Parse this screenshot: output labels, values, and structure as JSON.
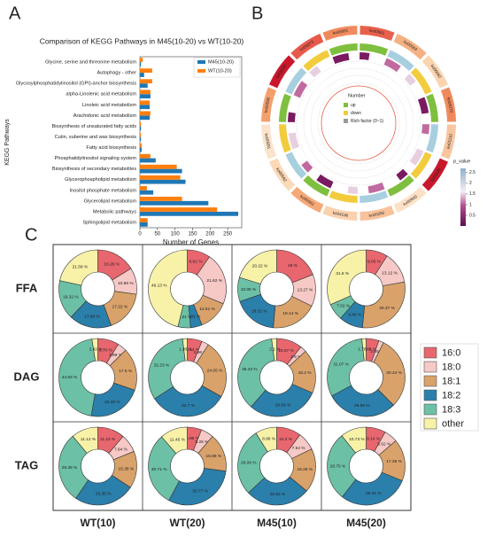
{
  "chart_data": [
    {
      "type": "hbar",
      "panel_label": "A",
      "title": "Comparison of KEGG Pathways in M45(10-20) vs WT(10-20)",
      "x_label": "Number of Genes",
      "y_label": "KEGG Pathways",
      "categories": [
        "Glycine, serine and threonine metabolism",
        "Autophagy - other",
        "Glycosylphosphatidylinositol (GPI)-anchor biosynthesis",
        "alpha-Linolenic acid metabolism",
        "Linoleic acid metabolism",
        "Arachidonic acid metabolism",
        "Biosynthesis of unsaturated fatty acids",
        "Cutin, suberine and wax biosynthesis",
        "Fatty acid biosynthesis",
        "Phosphatidylinositol signaling system",
        "Biosynthesis of secondary metabolites",
        "Glycerophospholipid metabolism",
        "Inositol phosphate metabolism",
        "Glycerolipid metabolism",
        "Metabolic pathways",
        "Sphingolipid metabolism"
      ],
      "series": [
        {
          "name": "M45(10-20)",
          "color": "#1f77b4",
          "values": [
            3,
            12,
            22,
            30,
            28,
            28,
            3,
            3,
            5,
            45,
            120,
            130,
            38,
            195,
            280,
            22
          ]
        },
        {
          "name": "WT(10-20)",
          "color": "#ff7f0e",
          "values": [
            8,
            35,
            35,
            30,
            28,
            30,
            3,
            3,
            5,
            30,
            105,
            115,
            20,
            120,
            220,
            22
          ]
        }
      ],
      "xlim": [
        0,
        290
      ],
      "xticks": [
        0,
        50,
        100,
        150,
        200,
        250
      ],
      "legend": "upper-right"
    },
    {
      "type": "circos",
      "panel_label": "B",
      "sectors": [
        "ko00561",
        "ko00564",
        "ko00562",
        "ko04070",
        "ko01110",
        "ko01100",
        "ko00600",
        "ko00260",
        "ko04136",
        "ko00563",
        "ko00592",
        "ko00591",
        "ko00590",
        "ko01040",
        "ko00073",
        "ko00061"
      ],
      "sector_colors": [
        "#e8604c",
        "#f5b183",
        "#fbd5b0",
        "#f08a5d",
        "#f7c59f",
        "#c9182b",
        "#fde0c5",
        "#f9c29b",
        "#fbd1ae",
        "#f6a878",
        "#fcd9b8",
        "#fbe3cb",
        "#f4a06e",
        "#c9182b",
        "#e85a4a",
        "#f08a5d"
      ],
      "legend_title": "Number",
      "legend_items": [
        "up",
        "down",
        "Rich factor (0~1)"
      ],
      "legend_colors": [
        "#7fbf3f",
        "#f2cc3c",
        "#999999"
      ],
      "colorbar_label": "p_value",
      "colorbar_ticks": [
        0.5,
        1,
        1.5,
        2,
        2.5
      ],
      "colorbar_lim": [
        0,
        2.7
      ]
    },
    {
      "type": "donut-grid",
      "panel_label": "C",
      "categories": [
        "16:0",
        "18:0",
        "18:1",
        "18:2",
        "18:3",
        "other"
      ],
      "colors": [
        "#e8666e",
        "#f6c9c6",
        "#d9a26a",
        "#2b7fab",
        "#6cc0a6",
        "#f8f2a8"
      ],
      "rows": [
        "FFA",
        "DAG",
        "TAG"
      ],
      "columns": [
        "WT(10)",
        "WT(20)",
        "M45(10)",
        "M45(20)"
      ],
      "grid": [
        [
          {
            "values": [
              16.26,
              10.96,
              17.22,
              17.66,
              16.32,
              21.58
            ],
            "value_labels": [
              "16.26 %",
              "10.96 %",
              "17.22 %",
              "17.66 %",
              "16.32 %",
              "21.58 %"
            ]
          },
          {
            "values": [
              9.62,
              21.62,
              12.61,
              4.81,
              5.21,
              46.13
            ],
            "value_labels": [
              "9.62 %",
              "21.62 %",
              "12.61 %",
              "4.81 %",
              "5.21 %",
              "46.13 %"
            ]
          },
          {
            "values": [
              19,
              13.27,
              19.14,
              18.32,
              10.05,
              20.22
            ],
            "value_labels": [
              "19 %",
              "13.27 %",
              "19.14 %",
              "18.32 %",
              "10.05 %",
              "20.22 %"
            ]
          },
          {
            "values": [
              9.03,
              13.12,
              29.37,
              9.86,
              7.02,
              31.6
            ],
            "value_labels": [
              "9.03 %",
              "13.12 %",
              "29.37 %",
              "9.86 %",
              "7.02 %",
              "31.6 %"
            ]
          }
        ],
        [
          {
            "values": [
              8.76,
              3.89,
              17.6,
              22.46,
              44.83,
              2.42
            ],
            "value_labels": [
              "8.76 %",
              "3.89 %",
              "17.6 %",
              "22.46 %",
              "44.83 %",
              "2.42 %"
            ]
          },
          {
            "values": [
              6.14,
              2.96,
              24.05,
              32.7,
              32.23,
              1.93
            ],
            "value_labels": [
              "6.14 %",
              "2.96 %",
              "24.05 %",
              "32.7 %",
              "32.23 %",
              "1.93 %"
            ]
          },
          {
            "values": [
              10.67,
              2.6,
              18.2,
              29.99,
              36.43,
              2.1
            ],
            "value_labels": [
              "10.67 %",
              "2.6 %",
              "18.2 %",
              "29.99 %",
              "36.43 %",
              "2.1 %"
            ]
          },
          {
            "values": [
              5.3,
              2.05,
              30.24,
              29.59,
              31.07,
              1.78
            ],
            "value_labels": [
              "5.3 %",
              "2.05 %",
              "30.24 %",
              "29.59 %",
              "31.07 %",
              "1.78 %"
            ]
          }
        ],
        [
          {
            "values": [
              11.23,
              7.64,
              15.38,
              25.35,
              29.38,
              11.12
            ],
            "value_labels": [
              "11.23 %",
              "7.64 %",
              "15.38 %",
              "25.35 %",
              "29.38 %",
              "11.12 %"
            ]
          },
          {
            "values": [
              5.96,
              5.26,
              15.86,
              30.77,
              30.71,
              11.45
            ],
            "value_labels": [
              "5.96 %",
              "5.26 %",
              "15.86 %",
              "30.77 %",
              "30.71 %",
              "11.45 %"
            ]
          },
          {
            "values": [
              10.2,
              7.54,
              18.29,
              26.92,
              28.09,
              8.96
            ],
            "value_labels": [
              "10.2 %",
              "7.54 %",
              "18.29 %",
              "26.92 %",
              "28.09 %",
              "8.96 %"
            ]
          },
          {
            "values": [
              8.14,
              5.62,
              17.35,
              29.41,
              28.75,
              10.73
            ],
            "value_labels": [
              "8.14 %",
              "5.62 %",
              "17.35 %",
              "29.41 %",
              "28.75 %",
              "10.73 %"
            ]
          }
        ]
      ]
    }
  ]
}
